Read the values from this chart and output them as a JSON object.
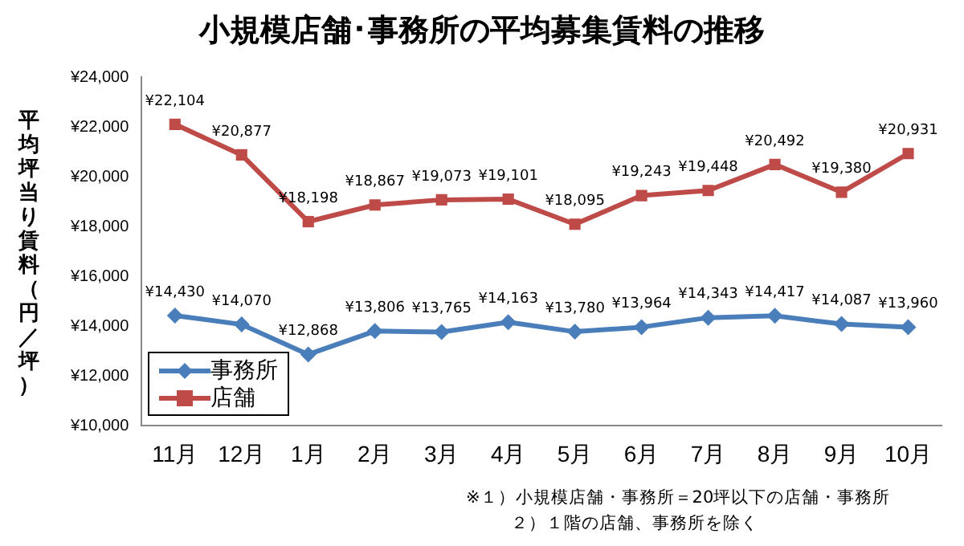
{
  "chart_data": {
    "type": "line",
    "title": "小規模店舗･事務所の平均募集賃料の推移",
    "ylabel": "平均坪当り賃料（円／坪）",
    "categories": [
      "11月",
      "12月",
      "1月",
      "2月",
      "3月",
      "4月",
      "5月",
      "6月",
      "7月",
      "8月",
      "9月",
      "10月"
    ],
    "series": [
      {
        "name": "事務所",
        "color": "#4a7ebb",
        "marker": "diamond",
        "values": [
          14430,
          14070,
          12868,
          13806,
          13765,
          14163,
          13780,
          13964,
          14343,
          14417,
          14087,
          13960
        ],
        "value_labels": [
          "¥14,430",
          "¥14,070",
          "¥12,868",
          "¥13,806",
          "¥13,765",
          "¥14,163",
          "¥13,780",
          "¥13,964",
          "¥14,343",
          "¥14,417",
          "¥14,087",
          "¥13,960"
        ]
      },
      {
        "name": "店舗",
        "color": "#be4b48",
        "marker": "square",
        "values": [
          22104,
          20877,
          18198,
          18867,
          19073,
          19101,
          18095,
          19243,
          19448,
          20492,
          19380,
          20931
        ],
        "value_labels": [
          "¥22,104",
          "¥20,877",
          "¥18,198",
          "¥18,867",
          "¥19,073",
          "¥19,101",
          "¥18,095",
          "¥19,243",
          "¥19,448",
          "¥20,492",
          "¥19,380",
          "¥20,931"
        ]
      }
    ],
    "ylim": [
      10000,
      24000
    ],
    "yticks": [
      {
        "value": 10000,
        "label": "¥10,000"
      },
      {
        "value": 12000,
        "label": "¥12,000"
      },
      {
        "value": 14000,
        "label": "¥14,000"
      },
      {
        "value": 16000,
        "label": "¥16,000"
      },
      {
        "value": 18000,
        "label": "¥18,000"
      },
      {
        "value": 20000,
        "label": "¥20,000"
      },
      {
        "value": 22000,
        "label": "¥22,000"
      },
      {
        "value": 24000,
        "label": "¥24,000"
      }
    ],
    "grid": false,
    "legend": "bottom left",
    "line_style": "solid",
    "annotations": [
      "※１）小規模店舗・事務所＝20坪以下の店舗・事務所",
      "２）１階の店舗、事務所を除く"
    ]
  }
}
